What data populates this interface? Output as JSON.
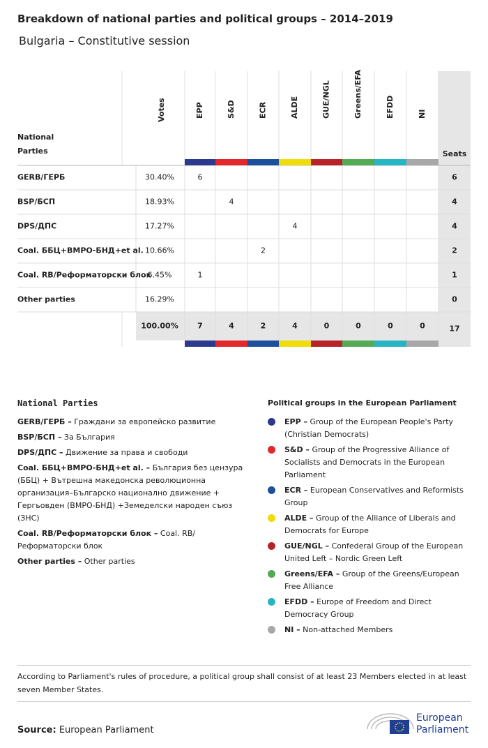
{
  "header": {
    "title": "Breakdown of national parties and political groups – 2014–2019",
    "subtitle": "Bulgaria – Constitutive session"
  },
  "table": {
    "party_header": "National Parties",
    "votes_header": "Votes",
    "seats_header": "Seats",
    "groups": [
      {
        "name": "EPP",
        "color": "#2b3a8c"
      },
      {
        "name": "S&D",
        "color": "#e3282d"
      },
      {
        "name": "ECR",
        "color": "#1c4f9c"
      },
      {
        "name": "ALDE",
        "color": "#f0dc0a"
      },
      {
        "name": "GUE/NGL",
        "color": "#b8232a"
      },
      {
        "name": "Greens/EFA",
        "color": "#55aa55"
      },
      {
        "name": "EFDD",
        "color": "#27b5c4"
      },
      {
        "name": "NI",
        "color": "#a8a8a8"
      }
    ],
    "rows": [
      {
        "party": "GERB/ГЕРБ",
        "votes": "30.40%",
        "seats": [
          6,
          null,
          null,
          null,
          null,
          null,
          null,
          null
        ],
        "total": 6
      },
      {
        "party": "BSP/БСП",
        "votes": "18.93%",
        "seats": [
          null,
          4,
          null,
          null,
          null,
          null,
          null,
          null
        ],
        "total": 4
      },
      {
        "party": "DPS/ДПС",
        "votes": "17.27%",
        "seats": [
          null,
          null,
          null,
          4,
          null,
          null,
          null,
          null
        ],
        "total": 4
      },
      {
        "party": "Coal. ББЦ+ВМРО-БНД+et al.",
        "votes": "10.66%",
        "seats": [
          null,
          null,
          2,
          null,
          null,
          null,
          null,
          null
        ],
        "total": 2
      },
      {
        "party": "Coal. RB/Реформаторски блок",
        "votes": "6.45%",
        "seats": [
          1,
          null,
          null,
          null,
          null,
          null,
          null,
          null
        ],
        "total": 1
      },
      {
        "party": "Other parties",
        "votes": "16.29%",
        "seats": [
          null,
          null,
          null,
          null,
          null,
          null,
          null,
          null
        ],
        "total": 0
      }
    ],
    "totals": {
      "votes": "100.00%",
      "seats": [
        7,
        4,
        2,
        4,
        0,
        0,
        0,
        0
      ],
      "total": 17
    }
  },
  "legend": {
    "parties_title": "National Parties",
    "parties": [
      {
        "abbr": "GERB/ГЕРБ –",
        "desc": "Граждани за европейско развитие"
      },
      {
        "abbr": "BSP/БСП –",
        "desc": "За България"
      },
      {
        "abbr": "DPS/ДПС –",
        "desc": "Движение за права и свободи"
      },
      {
        "abbr": "Coal. ББЦ+ВМРО-БНД+et al. –",
        "desc": "България без цензура (ББЦ) + Вътрешна македонска революционна организация–Българско национално движение + Гергьовден (ВМРО-БНД) +Земеделски народен съюз (ЗНС)"
      },
      {
        "abbr": "Coal. RB/Реформаторски блок –",
        "desc": "Coal. RB/Реформаторски блок"
      },
      {
        "abbr": "Other parties –",
        "desc": "Other parties"
      }
    ],
    "groups_title": "Political groups in the European Parliament",
    "groups": [
      {
        "abbr": "EPP –",
        "desc": "Group of the European People's Party (Christian Democrats)"
      },
      {
        "abbr": "S&D –",
        "desc": "Group of the Progressive Alliance of Socialists and Democrats in the European Parliament"
      },
      {
        "abbr": "ECR –",
        "desc": "European Conservatives and Reformists Group"
      },
      {
        "abbr": "ALDE –",
        "desc": "Group of the Alliance of Liberals and Democrats for Europe"
      },
      {
        "abbr": "GUE/NGL –",
        "desc": "Confederal Group of the European United Left – Nordic Green Left"
      },
      {
        "abbr": "Greens/EFA –",
        "desc": "Group of the Greens/European Free Alliance"
      },
      {
        "abbr": "EFDD –",
        "desc": "Europe of Freedom and Direct Democracy Group"
      },
      {
        "abbr": "NI –",
        "desc": "Non-attached Members"
      }
    ]
  },
  "footer": {
    "note": "According to Parliament's rules of procedure, a political group shall consist of at least 23 Members elected in at least seven Member States.",
    "source_label": "Source:",
    "source": "European Parliament",
    "logo": "European Parliament"
  }
}
